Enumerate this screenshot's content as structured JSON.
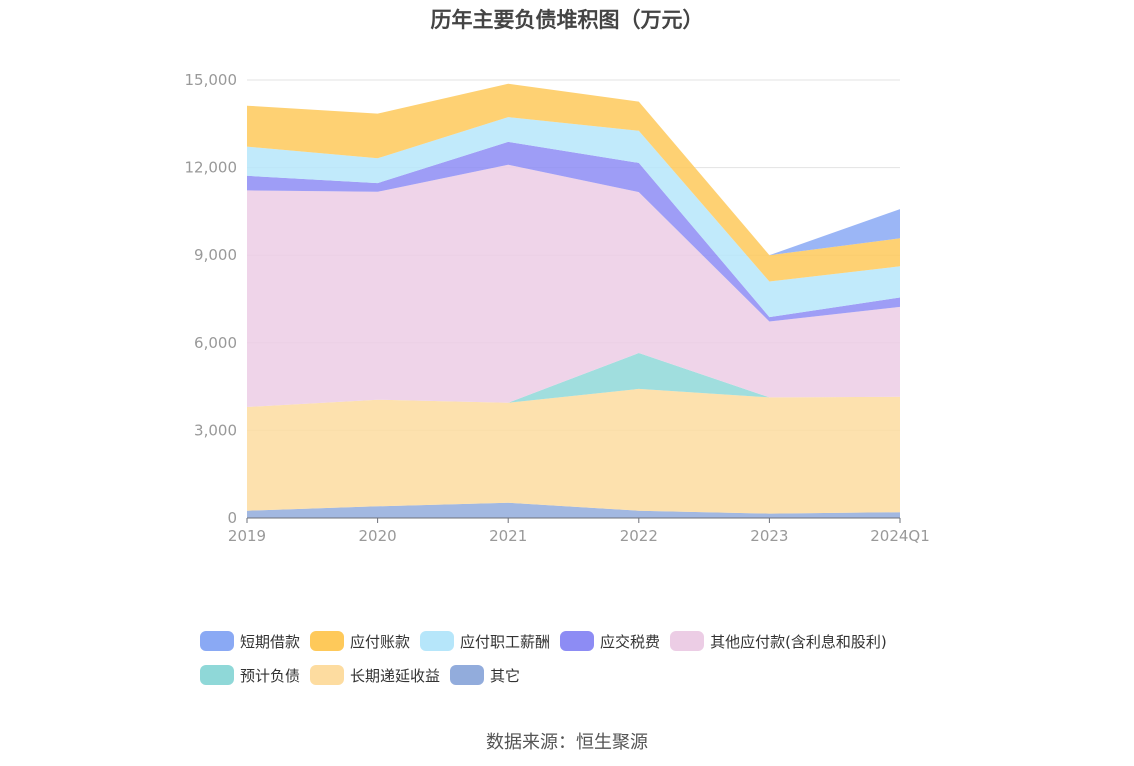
{
  "source_note": "数据来源：恒生聚源",
  "chart_data": {
    "type": "area",
    "stacked": true,
    "title": "历年主要负债堆积图（万元）",
    "xlabel": "",
    "ylabel": "",
    "categories": [
      "2019",
      "2020",
      "2021",
      "2022",
      "2023",
      "2024Q1"
    ],
    "ylim": [
      0,
      15000
    ],
    "yticks": [
      0,
      3000,
      6000,
      9000,
      12000,
      15000
    ],
    "ytick_labels": [
      "0",
      "3,000",
      "6,000",
      "9,000",
      "12,000",
      "15,000"
    ],
    "grid": true,
    "legend_position": "bottom",
    "series": [
      {
        "name": "其它",
        "color": "#92acdc",
        "values": [
          250,
          400,
          520,
          250,
          150,
          200
        ]
      },
      {
        "name": "长期递延收益",
        "color": "#fddca0",
        "values": [
          3550,
          3650,
          3430,
          4170,
          3980,
          3950
        ]
      },
      {
        "name": "预计负债",
        "color": "#8fd8d8",
        "values": [
          0,
          0,
          0,
          1230,
          0,
          0
        ]
      },
      {
        "name": "其他应付款(含利息和股利)",
        "color": "#eccde5",
        "values": [
          7420,
          7120,
          8150,
          5510,
          2600,
          3080
        ]
      },
      {
        "name": "应交税费",
        "color": "#8d8cf4",
        "values": [
          500,
          300,
          780,
          1000,
          150,
          320
        ]
      },
      {
        "name": "应付职工薪酬",
        "color": "#b6e6fa",
        "values": [
          1000,
          850,
          850,
          1100,
          1220,
          1070
        ]
      },
      {
        "name": "应付账款",
        "color": "#fec95a",
        "values": [
          1400,
          1530,
          1140,
          1000,
          900,
          960
        ]
      },
      {
        "name": "短期借款",
        "color": "#8aa9f4",
        "values": [
          0,
          0,
          0,
          0,
          0,
          1000
        ]
      }
    ],
    "legend_order": [
      "短期借款",
      "应付账款",
      "应付职工薪酬",
      "应交税费",
      "其他应付款(含利息和股利)",
      "预计负债",
      "长期递延收益",
      "其它"
    ]
  }
}
